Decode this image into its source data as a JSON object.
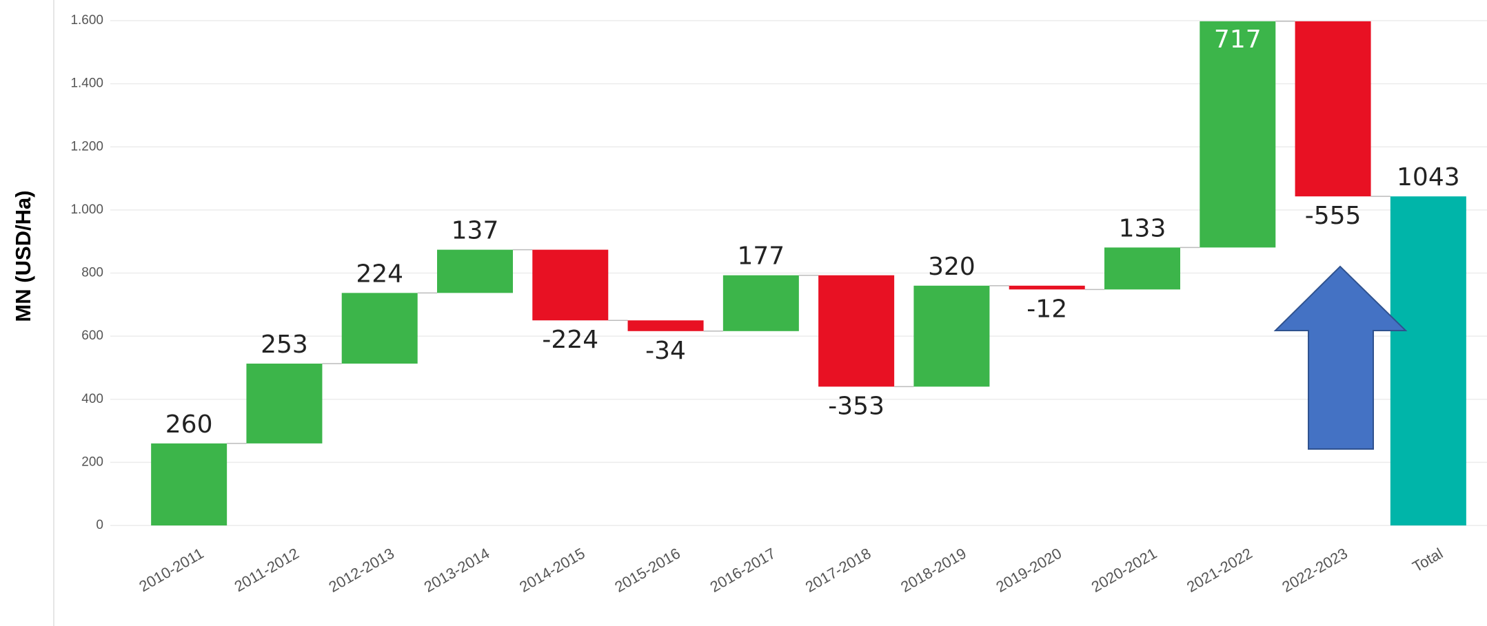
{
  "chart_data": {
    "type": "waterfall",
    "y_label": "MN (USD/Ha)",
    "categories": [
      "2010-2011",
      "2011-2012",
      "2012-2013",
      "2013-2014",
      "2014-2015",
      "2015-2016",
      "2016-2017",
      "2017-2018",
      "2018-2019",
      "2019-2020",
      "2020-2021",
      "2021-2022",
      "2022-2023",
      "Total"
    ],
    "values": [
      260,
      253,
      224,
      137,
      -224,
      -34,
      177,
      -353,
      320,
      -12,
      133,
      717,
      -555,
      1043
    ],
    "increase_color": "#3cb54a",
    "decrease_color": "#e81123",
    "total_color": "#00b5a9",
    "ylim": [
      0,
      1600
    ],
    "yticks": [
      0,
      200,
      400,
      600,
      800,
      {
        "value": 1000,
        "label": "1.000"
      },
      {
        "value": 1200,
        "label": "1.200"
      },
      {
        "value": 1400,
        "label": "1.400"
      },
      {
        "value": 1600,
        "label": "1.600"
      }
    ],
    "grid": true
  }
}
